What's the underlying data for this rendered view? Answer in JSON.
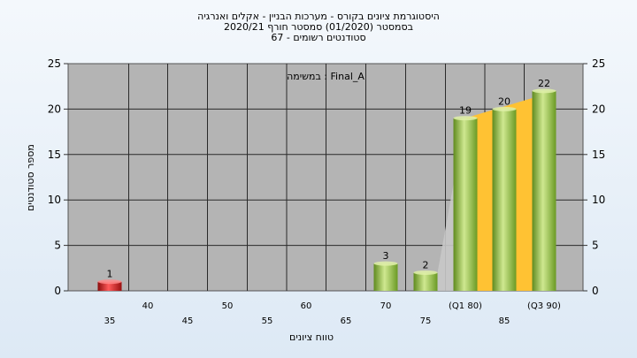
{
  "chart_data": {
    "type": "bar",
    "title_lines": [
      "היסטוגרמת ציונים בקורס - מערכות הבניין - אקלים ואנרגיה",
      "בסמסטר  (01/2020)  סמסטר חורף 2020/21",
      "סטודנטים רשומים - 67"
    ],
    "annotation": "במשימה : Final_A",
    "xlabel": "טווח ציונים",
    "ylabel": "מספר סטודנטים",
    "ylim": [
      0,
      25
    ],
    "y_ticks": [
      0,
      5,
      10,
      15,
      20,
      25
    ],
    "x_tick_labels_row1": [
      "40",
      "50",
      "60",
      "70",
      "(Q1 80)",
      "(Q3 90)"
    ],
    "x_tick_labels_row2": [
      "35",
      "45",
      "55",
      "65",
      "75",
      "85"
    ],
    "categories": [
      "35",
      "40",
      "45",
      "50",
      "55",
      "60",
      "65",
      "70",
      "75",
      "80",
      "85",
      "90"
    ],
    "values": [
      1,
      0,
      0,
      0,
      0,
      0,
      0,
      3,
      2,
      19,
      20,
      22
    ],
    "colors": {
      "red_bar": "#d42020",
      "green_bar": "#8fbf3c",
      "iqr_band": "#ffc233",
      "plot_background": "#b4b4b4",
      "grid": "#2a2a2a"
    },
    "grid": true
  }
}
